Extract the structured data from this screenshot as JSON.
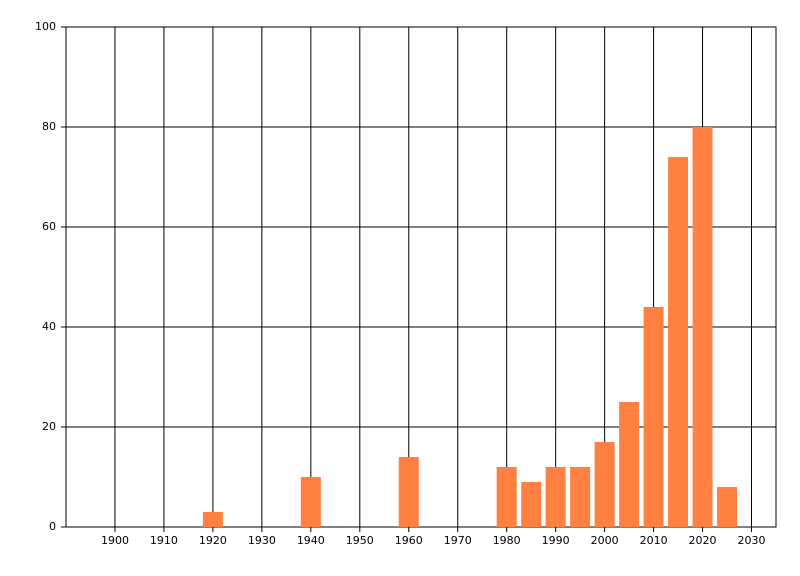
{
  "chart_data": {
    "type": "bar",
    "x": [
      1920,
      1940,
      1960,
      1980,
      1985,
      1990,
      1995,
      2000,
      2005,
      2010,
      2015,
      2020,
      2025
    ],
    "values": [
      3,
      10,
      14,
      12,
      9,
      12,
      12,
      17,
      25,
      44,
      74,
      80,
      8
    ],
    "color": "#ff8040",
    "xlim": [
      1890,
      2035
    ],
    "xticks": [
      1900,
      1910,
      1920,
      1930,
      1940,
      1950,
      1960,
      1970,
      1980,
      1990,
      2000,
      2010,
      2020,
      2030
    ],
    "ylim": [
      0,
      100
    ],
    "yticks": [
      0,
      20,
      40,
      60,
      80,
      100
    ],
    "grid": true
  }
}
